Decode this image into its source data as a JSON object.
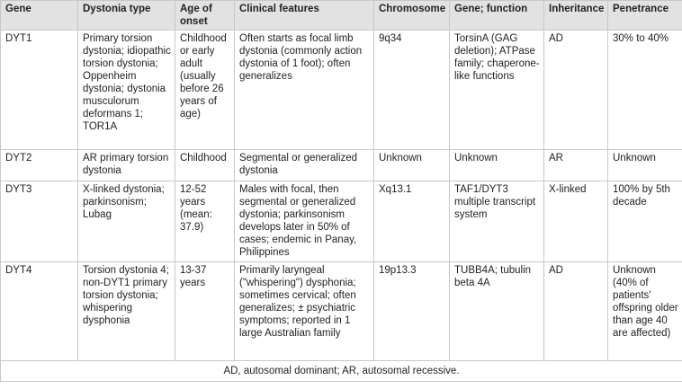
{
  "table": {
    "headers": [
      "Gene",
      "Dystonia type",
      "Age of onset",
      "Clinical features",
      "Chromosome",
      "Gene; function",
      "Inheritance",
      "Penetrance"
    ],
    "rows": [
      {
        "gene": "DYT1",
        "type": "Primary torsion dystonia; idiopathic torsion dystonia; Oppenheim dystonia; dystonia musculorum deformans 1; TOR1A",
        "onset": "Childhood or early adult (usually before 26 years of age)",
        "features": "Often starts as focal limb dystonia (commonly action dystonia of 1 foot); often generalizes",
        "chromosome": "9q34",
        "function": "TorsinA (GAG deletion); ATPase family; chaperone-like functions",
        "inheritance": "AD",
        "penetrance": "30% to 40%"
      },
      {
        "gene": "DYT2",
        "type": "AR primary torsion dystonia",
        "onset": "Childhood",
        "features": "Segmental or generalized dystonia",
        "chromosome": "Unknown",
        "function": "Unknown",
        "inheritance": "AR",
        "penetrance": "Unknown"
      },
      {
        "gene": "DYT3",
        "type": "X-linked dystonia; parkinsonism; Lubag",
        "onset": "12-52 years (mean: 37.9)",
        "features": "Males with focal, then segmental or generalized dystonia; parkinsonism develops later in 50% of cases; endemic in Panay, Philippines",
        "chromosome": "Xq13.1",
        "function": "TAF1/DYT3 multiple transcript system",
        "inheritance": "X-linked",
        "penetrance": "100% by 5th decade"
      },
      {
        "gene": "DYT4",
        "type": "Torsion dystonia 4; non-DYT1 primary torsion dystonia; whispering dysphonia",
        "onset": "13-37 years",
        "features": "Primarily laryngeal (\"whispering\") dysphonia; sometimes cervical; often generalizes; ± psychiatric symptoms; reported in 1 large Australian family",
        "chromosome": "19p13.3",
        "function": "TUBB4A; tubulin beta 4A",
        "inheritance": "AD",
        "penetrance": "Unknown (40% of patients' offspring older than age 40 are affected)"
      }
    ],
    "footnote": "AD, autosomal dominant; AR, autosomal recessive."
  }
}
